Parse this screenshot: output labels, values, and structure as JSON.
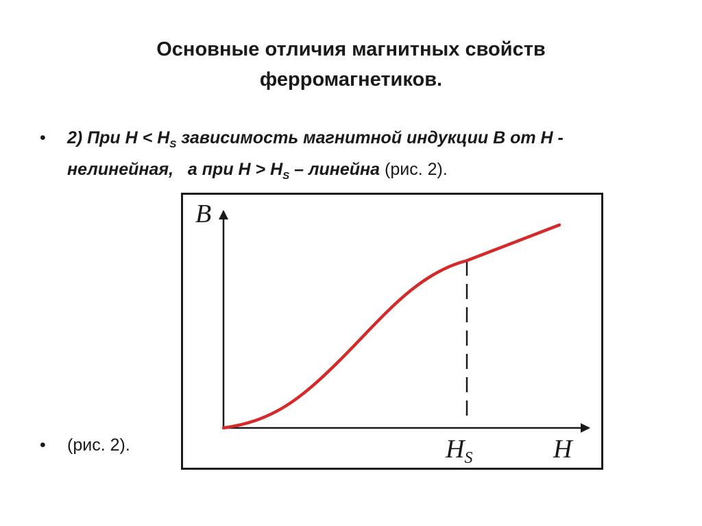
{
  "title": {
    "line1": "Основные отличия магнитных свойств",
    "line2": "ферромагнетиков."
  },
  "bullet1": {
    "marker": "•",
    "line1_a": "2) При H < H",
    "line1_sub": "S",
    "line1_b": " зависимость магнитной индукции B от H -",
    "line2_a": "нелинейная,",
    "line2_b": "а при H > H",
    "line2_sub": "S",
    "line2_c": " – линейна",
    "line2_d": " (рис. 2)."
  },
  "bullet2": {
    "marker": "•",
    "text": "(рис. 2)."
  },
  "figure": {
    "y_axis_label": "B",
    "x_axis_label": "H",
    "hs_label": "H",
    "hs_sub": "S",
    "curve_color": "#d42a2a",
    "axis_color": "#1a1a1a"
  }
}
